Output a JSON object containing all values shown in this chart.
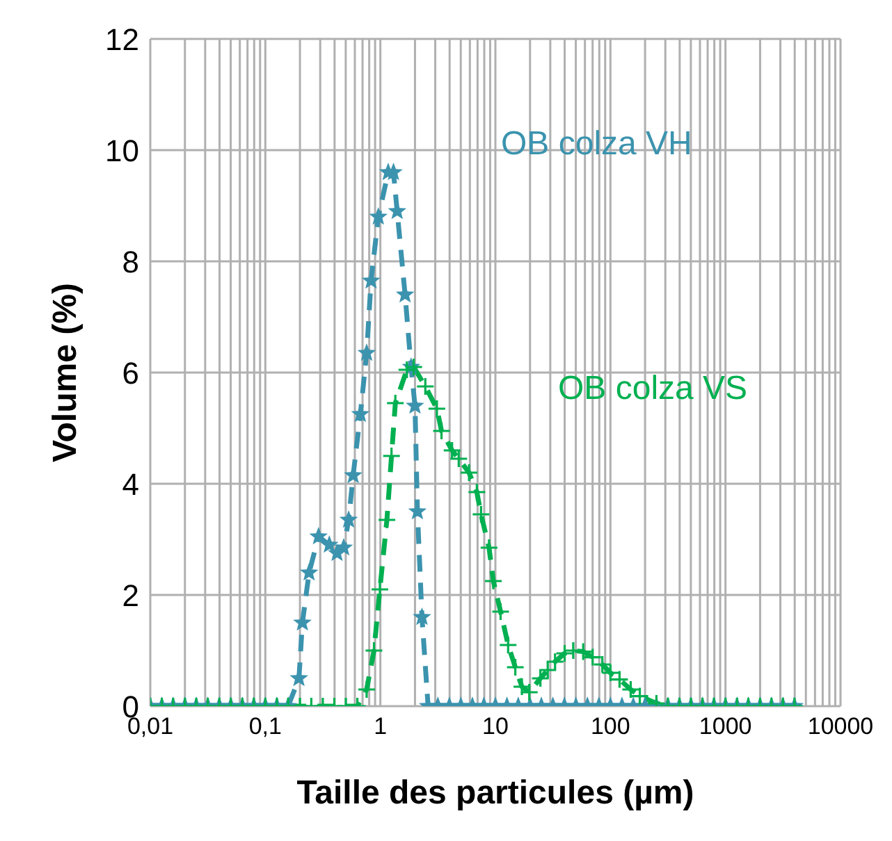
{
  "chart_data": {
    "type": "line",
    "xlabel": "Taille des particules (µm)",
    "ylabel": "Volume (%)",
    "log": "x",
    "grid": true,
    "line_style": "dashed",
    "xlim": [
      0.01,
      10000
    ],
    "ylim": [
      0,
      12
    ],
    "yticks": [
      0,
      2,
      4,
      6,
      8,
      10,
      12
    ],
    "xticks": [
      {
        "value": 0.01,
        "label": "0,01"
      },
      {
        "value": 0.02,
        "label": null
      },
      {
        "value": 0.03,
        "label": null
      },
      {
        "value": 0.04,
        "label": null
      },
      {
        "value": 0.05,
        "label": null
      },
      {
        "value": 0.06,
        "label": null
      },
      {
        "value": 0.07,
        "label": null
      },
      {
        "value": 0.08,
        "label": null
      },
      {
        "value": 0.09,
        "label": null
      },
      {
        "value": 0.1,
        "label": "0,1"
      },
      {
        "value": 0.2,
        "label": null
      },
      {
        "value": 0.3,
        "label": null
      },
      {
        "value": 0.4,
        "label": null
      },
      {
        "value": 0.5,
        "label": null
      },
      {
        "value": 0.6,
        "label": null
      },
      {
        "value": 0.7,
        "label": null
      },
      {
        "value": 0.8,
        "label": null
      },
      {
        "value": 0.9,
        "label": null
      },
      {
        "value": 1,
        "label": "1"
      },
      {
        "value": 2,
        "label": null
      },
      {
        "value": 3,
        "label": null
      },
      {
        "value": 4,
        "label": null
      },
      {
        "value": 5,
        "label": null
      },
      {
        "value": 6,
        "label": null
      },
      {
        "value": 7,
        "label": null
      },
      {
        "value": 8,
        "label": null
      },
      {
        "value": 9,
        "label": null
      },
      {
        "value": 10,
        "label": "10"
      },
      {
        "value": 20,
        "label": null
      },
      {
        "value": 30,
        "label": null
      },
      {
        "value": 40,
        "label": null
      },
      {
        "value": 50,
        "label": null
      },
      {
        "value": 60,
        "label": null
      },
      {
        "value": 70,
        "label": null
      },
      {
        "value": 80,
        "label": null
      },
      {
        "value": 90,
        "label": null
      },
      {
        "value": 100,
        "label": "100"
      },
      {
        "value": 200,
        "label": null
      },
      {
        "value": 300,
        "label": null
      },
      {
        "value": 400,
        "label": null
      },
      {
        "value": 500,
        "label": null
      },
      {
        "value": 600,
        "label": null
      },
      {
        "value": 700,
        "label": null
      },
      {
        "value": 800,
        "label": null
      },
      {
        "value": 900,
        "label": null
      },
      {
        "value": 1000,
        "label": "1000"
      },
      {
        "value": 2000,
        "label": null
      },
      {
        "value": 3000,
        "label": null
      },
      {
        "value": 4000,
        "label": null
      },
      {
        "value": 5000,
        "label": null
      },
      {
        "value": 6000,
        "label": null
      },
      {
        "value": 7000,
        "label": null
      },
      {
        "value": 8000,
        "label": null
      },
      {
        "value": 9000,
        "label": null
      },
      {
        "value": 10000,
        "label": "10000"
      }
    ],
    "series": [
      {
        "name": "OB colza VH",
        "color": "#3b93ae",
        "marker": "star",
        "x": [
          0.01,
          0.0126,
          0.0158,
          0.02,
          0.0251,
          0.0316,
          0.0398,
          0.0501,
          0.0631,
          0.0794,
          0.1,
          0.126,
          0.158,
          0.196,
          0.21,
          0.24,
          0.29,
          0.36,
          0.42,
          0.48,
          0.53,
          0.58,
          0.67,
          0.76,
          0.83,
          0.96,
          1.17,
          1.3,
          1.4,
          1.64,
          1.85,
          2.0,
          2.1,
          2.3,
          2.6,
          3.16,
          3.98,
          5.01,
          6.31,
          7.94,
          10,
          12.6,
          15.8,
          20,
          25.1,
          31.6,
          39.8,
          50.1,
          63.1,
          79.4,
          100,
          126,
          158,
          200,
          251,
          316,
          398,
          501,
          631,
          794,
          1000,
          1260,
          1580,
          2000,
          2510,
          3160,
          3980
        ],
        "values": [
          0,
          0,
          0,
          0,
          0,
          0,
          0,
          0,
          0,
          0,
          0,
          0,
          0,
          0.5,
          1.5,
          2.4,
          3.05,
          2.9,
          2.75,
          2.85,
          3.35,
          4.15,
          5.25,
          6.35,
          7.65,
          8.8,
          9.6,
          9.6,
          8.9,
          7.4,
          6.1,
          5.4,
          3.5,
          1.6,
          0,
          0,
          0,
          0,
          0,
          0,
          0,
          0,
          0,
          0,
          0,
          0,
          0,
          0,
          0,
          0,
          0,
          0,
          0,
          0,
          0,
          0,
          0,
          0,
          0,
          0,
          0,
          0,
          0,
          0,
          0,
          0,
          0
        ]
      },
      {
        "name": "OB colza VS",
        "color": "#00b050",
        "marker": "cross",
        "x": [
          0.01,
          0.0126,
          0.0158,
          0.02,
          0.0251,
          0.0316,
          0.0398,
          0.0501,
          0.0631,
          0.0794,
          0.1,
          0.126,
          0.158,
          0.2,
          0.251,
          0.316,
          0.398,
          0.501,
          0.631,
          0.76,
          0.88,
          0.99,
          1.14,
          1.25,
          1.35,
          1.7,
          1.95,
          2.46,
          3.1,
          3.4,
          4.2,
          4.8,
          5.9,
          6.9,
          7.5,
          8.8,
          9.6,
          11.1,
          12.9,
          14.9,
          17,
          19.7,
          24.6,
          28.5,
          33,
          40,
          47.5,
          58,
          70,
          85,
          100,
          120,
          150,
          180,
          251,
          316,
          398,
          501,
          631,
          794,
          1000,
          1260,
          1580,
          2000,
          2510,
          3160,
          3980
        ],
        "values": [
          0,
          0,
          0,
          0,
          0,
          0,
          0,
          0,
          0,
          0,
          0,
          0,
          0,
          0,
          0,
          0,
          0,
          0,
          0,
          0.3,
          1.0,
          2.1,
          3.35,
          4.5,
          5.45,
          6.05,
          6.1,
          5.75,
          5.35,
          4.95,
          4.6,
          4.45,
          4.2,
          3.85,
          3.45,
          2.85,
          2.25,
          1.7,
          1.1,
          0.7,
          0.35,
          0.25,
          0.5,
          0.65,
          0.8,
          0.95,
          1.0,
          0.98,
          0.88,
          0.75,
          0.6,
          0.48,
          0.3,
          0.18,
          0.05,
          0,
          0,
          0,
          0,
          0,
          0,
          0,
          0,
          0,
          0,
          0,
          0
        ]
      }
    ]
  }
}
